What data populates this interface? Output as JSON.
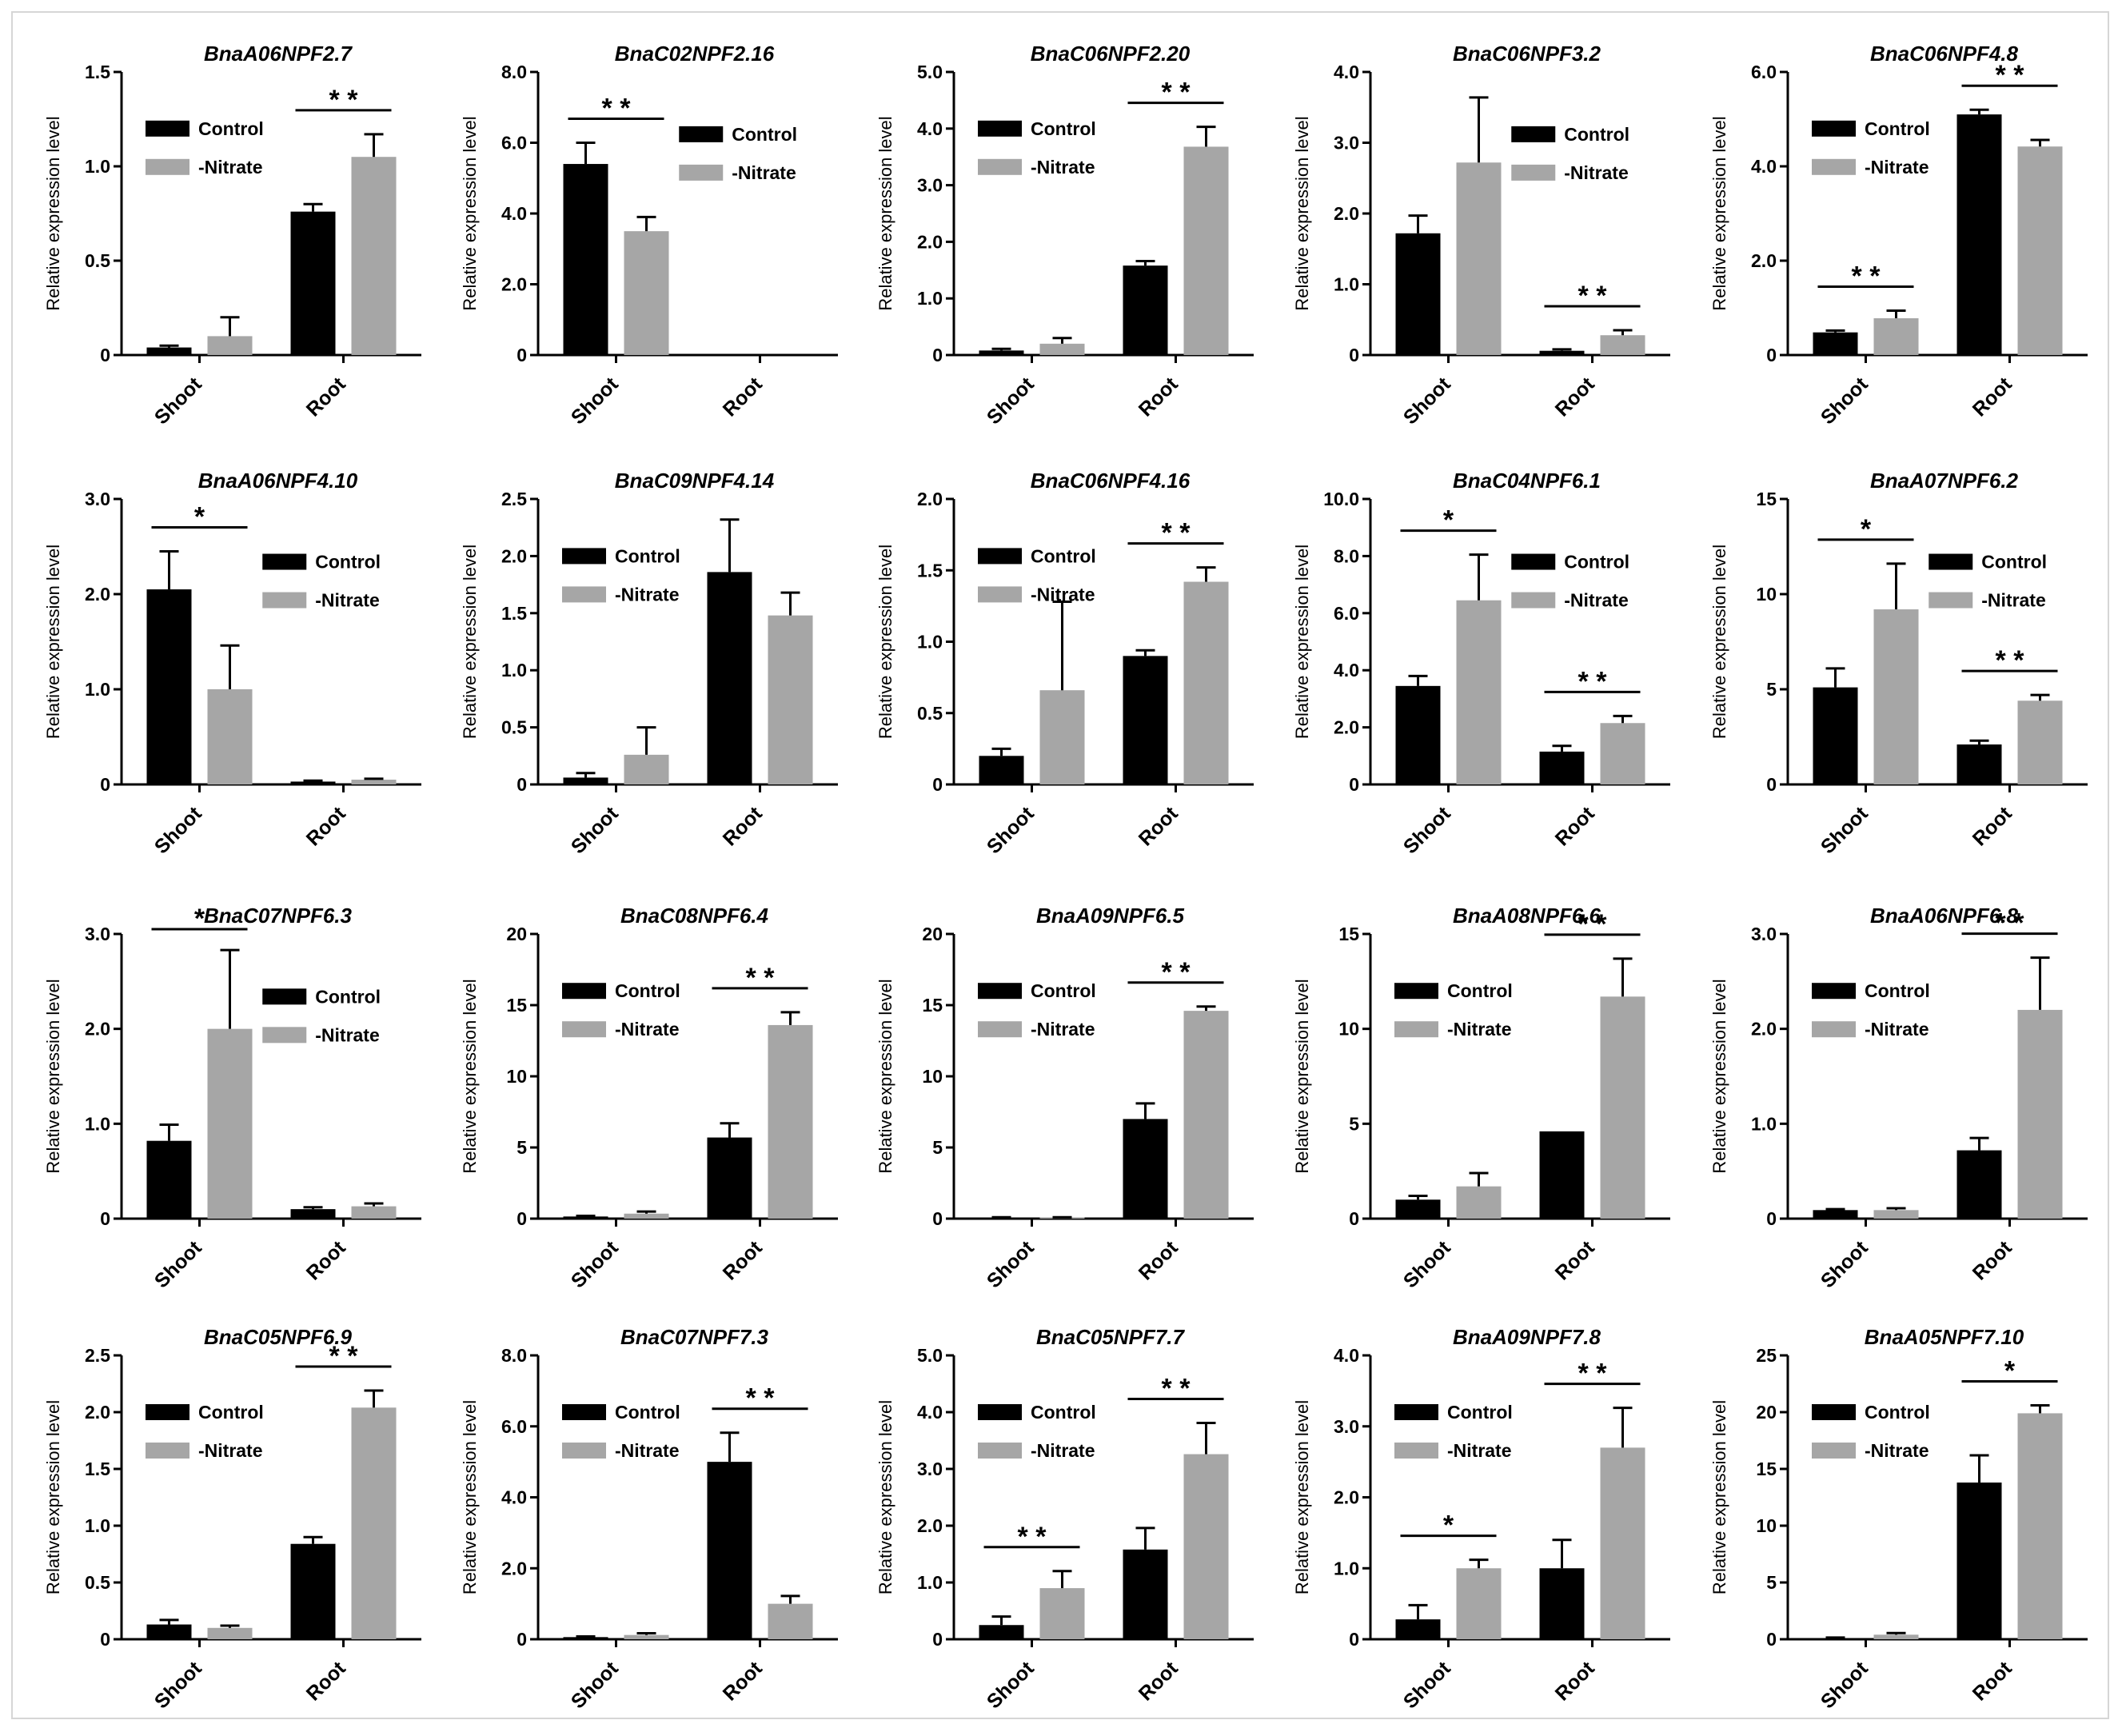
{
  "figure": {
    "colors": {
      "control": "#000000",
      "nitrate": "#a6a6a6",
      "axis": "#000000",
      "errorbar": "#000000"
    }
  },
  "chart_data": [
    {
      "type": "bar",
      "title": "BnaA06NPF2.7",
      "ylabel": "Relative expression level",
      "xlabel": "",
      "categories": [
        "Shoot",
        "Root"
      ],
      "ylim": [
        0,
        1.5
      ],
      "yticks": [
        0,
        0.5,
        1.0,
        1.5
      ],
      "tick_labels": [
        "0",
        "0.5",
        "1.0",
        "1.5"
      ],
      "legend_pos": "top-left",
      "series": [
        {
          "name": "Control",
          "values": [
            0.04,
            0.76
          ],
          "errors": [
            0.01,
            0.04
          ]
        },
        {
          "name": "-Nitrate",
          "values": [
            0.1,
            1.05
          ],
          "errors": [
            0.1,
            0.12
          ]
        }
      ],
      "annotations": [
        {
          "category": 1,
          "label": "* *"
        }
      ]
    },
    {
      "type": "bar",
      "title": "BnaC02NPF2.16",
      "ylabel": "Relative expression level",
      "xlabel": "",
      "categories": [
        "Shoot",
        "Root"
      ],
      "ylim": [
        0,
        8.0
      ],
      "yticks": [
        0,
        2,
        4,
        6,
        8
      ],
      "tick_labels": [
        "0",
        "2.0",
        "4.0",
        "6.0",
        "8.0"
      ],
      "legend_pos": "top-right",
      "series": [
        {
          "name": "Control",
          "values": [
            5.4,
            0
          ],
          "errors": [
            0.6,
            0
          ]
        },
        {
          "name": "-Nitrate",
          "values": [
            3.5,
            0
          ],
          "errors": [
            0.4,
            0
          ]
        }
      ],
      "annotations": [
        {
          "category": 0,
          "label": "* *"
        }
      ]
    },
    {
      "type": "bar",
      "title": "BnaC06NPF2.20",
      "ylabel": "Relative expression level",
      "xlabel": "",
      "categories": [
        "Shoot",
        "Root"
      ],
      "ylim": [
        0,
        5.0
      ],
      "yticks": [
        0,
        1,
        2,
        3,
        4,
        5
      ],
      "tick_labels": [
        "0",
        "1.0",
        "2.0",
        "3.0",
        "4.0",
        "5.0"
      ],
      "legend_pos": "top-left",
      "series": [
        {
          "name": "Control",
          "values": [
            0.08,
            1.58
          ],
          "errors": [
            0.03,
            0.08
          ]
        },
        {
          "name": "-Nitrate",
          "values": [
            0.2,
            3.68
          ],
          "errors": [
            0.1,
            0.35
          ]
        }
      ],
      "annotations": [
        {
          "category": 1,
          "label": "* *"
        }
      ]
    },
    {
      "type": "bar",
      "title": "BnaC06NPF3.2",
      "ylabel": "Relative expression level",
      "xlabel": "",
      "categories": [
        "Shoot",
        "Root"
      ],
      "ylim": [
        0,
        4.0
      ],
      "yticks": [
        0,
        1,
        2,
        3,
        4
      ],
      "tick_labels": [
        "0",
        "1.0",
        "2.0",
        "3.0",
        "4.0"
      ],
      "legend_pos": "top-right",
      "series": [
        {
          "name": "Control",
          "values": [
            1.72,
            0.06
          ],
          "errors": [
            0.25,
            0.02
          ]
        },
        {
          "name": "-Nitrate",
          "values": [
            2.72,
            0.28
          ],
          "errors": [
            0.92,
            0.07
          ]
        }
      ],
      "annotations": [
        {
          "category": 1,
          "label": "* *"
        }
      ]
    },
    {
      "type": "bar",
      "title": "BnaC06NPF4.8",
      "ylabel": "Relative expression level",
      "xlabel": "",
      "categories": [
        "Shoot",
        "Root"
      ],
      "ylim": [
        0,
        6.0
      ],
      "yticks": [
        0,
        2,
        4,
        6
      ],
      "tick_labels": [
        "0",
        "2.0",
        "4.0",
        "6.0"
      ],
      "legend_pos": "top-left",
      "series": [
        {
          "name": "Control",
          "values": [
            0.48,
            5.1
          ],
          "errors": [
            0.04,
            0.1
          ]
        },
        {
          "name": "-Nitrate",
          "values": [
            0.78,
            4.42
          ],
          "errors": [
            0.16,
            0.14
          ]
        }
      ],
      "annotations": [
        {
          "category": 0,
          "label": "* *"
        },
        {
          "category": 1,
          "label": "* *"
        }
      ]
    },
    {
      "type": "bar",
      "title": "BnaA06NPF4.10",
      "ylabel": "Relative expression level",
      "xlabel": "",
      "categories": [
        "Shoot",
        "Root"
      ],
      "ylim": [
        0,
        3.0
      ],
      "yticks": [
        0,
        1,
        2,
        3
      ],
      "tick_labels": [
        "0",
        "1.0",
        "2.0",
        "3.0"
      ],
      "legend_pos": "top-right",
      "series": [
        {
          "name": "Control",
          "values": [
            2.05,
            0.03
          ],
          "errors": [
            0.4,
            0.01
          ]
        },
        {
          "name": "-Nitrate",
          "values": [
            1.0,
            0.05
          ],
          "errors": [
            0.46,
            0.01
          ]
        }
      ],
      "annotations": [
        {
          "category": 0,
          "label": "*"
        }
      ]
    },
    {
      "type": "bar",
      "title": "BnaC09NPF4.14",
      "ylabel": "Relative expression level",
      "xlabel": "",
      "categories": [
        "Shoot",
        "Root"
      ],
      "ylim": [
        0,
        2.5
      ],
      "yticks": [
        0,
        0.5,
        1.0,
        1.5,
        2.0,
        2.5
      ],
      "tick_labels": [
        "0",
        "0.5",
        "1.0",
        "1.5",
        "2.0",
        "2.5"
      ],
      "legend_pos": "top-left",
      "series": [
        {
          "name": "Control",
          "values": [
            0.06,
            1.86
          ],
          "errors": [
            0.04,
            0.46
          ]
        },
        {
          "name": "-Nitrate",
          "values": [
            0.26,
            1.48
          ],
          "errors": [
            0.24,
            0.2
          ]
        }
      ],
      "annotations": []
    },
    {
      "type": "bar",
      "title": "BnaC06NPF4.16",
      "ylabel": "Relative expression level",
      "xlabel": "",
      "categories": [
        "Shoot",
        "Root"
      ],
      "ylim": [
        0,
        2.0
      ],
      "yticks": [
        0,
        0.5,
        1.0,
        1.5,
        2.0
      ],
      "tick_labels": [
        "0",
        "0.5",
        "1.0",
        "1.5",
        "2.0"
      ],
      "legend_pos": "top-left",
      "series": [
        {
          "name": "Control",
          "values": [
            0.2,
            0.9
          ],
          "errors": [
            0.05,
            0.04
          ]
        },
        {
          "name": "-Nitrate",
          "values": [
            0.66,
            1.42
          ],
          "errors": [
            0.62,
            0.1
          ]
        }
      ],
      "annotations": [
        {
          "category": 1,
          "label": "* *"
        }
      ]
    },
    {
      "type": "bar",
      "title": "BnaC04NPF6.1",
      "ylabel": "Relative expression level",
      "xlabel": "",
      "categories": [
        "Shoot",
        "Root"
      ],
      "ylim": [
        0,
        10.0
      ],
      "yticks": [
        0,
        2,
        4,
        6,
        8,
        10
      ],
      "tick_labels": [
        "0",
        "2.0",
        "4.0",
        "6.0",
        "8.0",
        "10.0"
      ],
      "legend_pos": "top-right",
      "series": [
        {
          "name": "Control",
          "values": [
            3.45,
            1.15
          ],
          "errors": [
            0.35,
            0.2
          ]
        },
        {
          "name": "-Nitrate",
          "values": [
            6.45,
            2.15
          ],
          "errors": [
            1.6,
            0.25
          ]
        }
      ],
      "annotations": [
        {
          "category": 0,
          "label": "*"
        },
        {
          "category": 1,
          "label": "* *"
        }
      ]
    },
    {
      "type": "bar",
      "title": "BnaA07NPF6.2",
      "ylabel": "Relative expression level",
      "xlabel": "",
      "categories": [
        "Shoot",
        "Root"
      ],
      "ylim": [
        0,
        15
      ],
      "yticks": [
        0,
        5,
        10,
        15
      ],
      "tick_labels": [
        "0",
        "5",
        "10",
        "15"
      ],
      "legend_pos": "top-right",
      "series": [
        {
          "name": "Control",
          "values": [
            5.1,
            2.1
          ],
          "errors": [
            1.0,
            0.2
          ]
        },
        {
          "name": "-Nitrate",
          "values": [
            9.2,
            4.4
          ],
          "errors": [
            2.4,
            0.3
          ]
        }
      ],
      "annotations": [
        {
          "category": 0,
          "label": "*"
        },
        {
          "category": 1,
          "label": "* *"
        }
      ]
    },
    {
      "type": "bar",
      "title": "BnaC07NPF6.3",
      "ylabel": "Relative expression level",
      "xlabel": "",
      "categories": [
        "Shoot",
        "Root"
      ],
      "ylim": [
        0,
        3.0
      ],
      "yticks": [
        0,
        1,
        2,
        3
      ],
      "tick_labels": [
        "0",
        "1.0",
        "2.0",
        "3.0"
      ],
      "legend_pos": "top-right",
      "series": [
        {
          "name": "Control",
          "values": [
            0.82,
            0.1
          ],
          "errors": [
            0.17,
            0.02
          ]
        },
        {
          "name": "-Nitrate",
          "values": [
            2.0,
            0.13
          ],
          "errors": [
            0.83,
            0.03
          ]
        }
      ],
      "annotations": [
        {
          "category": 0,
          "label": "*"
        }
      ]
    },
    {
      "type": "bar",
      "title": "BnaC08NPF6.4",
      "ylabel": "Relative expression level",
      "xlabel": "",
      "categories": [
        "Shoot",
        "Root"
      ],
      "ylim": [
        0,
        20
      ],
      "yticks": [
        0,
        5,
        10,
        15,
        20
      ],
      "tick_labels": [
        "0",
        "5",
        "10",
        "15",
        "20"
      ],
      "legend_pos": "top-left",
      "series": [
        {
          "name": "Control",
          "values": [
            0.15,
            5.7
          ],
          "errors": [
            0.05,
            1.0
          ]
        },
        {
          "name": "-Nitrate",
          "values": [
            0.35,
            13.6
          ],
          "errors": [
            0.15,
            0.9
          ]
        }
      ],
      "annotations": [
        {
          "category": 1,
          "label": "* *"
        }
      ]
    },
    {
      "type": "bar",
      "title": "BnaA09NPF6.5",
      "ylabel": "Relative expression level",
      "xlabel": "",
      "categories": [
        "Shoot",
        "Root"
      ],
      "ylim": [
        0,
        20
      ],
      "yticks": [
        0,
        5,
        10,
        15,
        20
      ],
      "tick_labels": [
        "0",
        "5",
        "10",
        "15",
        "20"
      ],
      "legend_pos": "top-left",
      "series": [
        {
          "name": "Control",
          "values": [
            0.08,
            7.0
          ],
          "errors": [
            0.02,
            1.1
          ]
        },
        {
          "name": "-Nitrate",
          "values": [
            0.08,
            14.6
          ],
          "errors": [
            0.02,
            0.3
          ]
        }
      ],
      "annotations": [
        {
          "category": 1,
          "label": "* *"
        }
      ]
    },
    {
      "type": "bar",
      "title": "BnaA08NPF6.6",
      "ylabel": "Relative expression level",
      "xlabel": "",
      "categories": [
        "Shoot",
        "Root"
      ],
      "ylim": [
        0,
        15
      ],
      "yticks": [
        0,
        5,
        10,
        15
      ],
      "tick_labels": [
        "0",
        "5",
        "10",
        "15"
      ],
      "legend_pos": "top-left",
      "series": [
        {
          "name": "Control",
          "values": [
            1.0,
            4.6
          ],
          "errors": [
            0.2,
            0
          ]
        },
        {
          "name": "-Nitrate",
          "values": [
            1.7,
            11.7
          ],
          "errors": [
            0.7,
            2.0
          ]
        }
      ],
      "annotations": [
        {
          "category": 1,
          "label": "* *"
        }
      ]
    },
    {
      "type": "bar",
      "title": "BnaA06NPF6.8",
      "ylabel": "Relative expression level",
      "xlabel": "",
      "categories": [
        "Shoot",
        "Root"
      ],
      "ylim": [
        0,
        3.0
      ],
      "yticks": [
        0,
        1,
        2,
        3
      ],
      "tick_labels": [
        "0",
        "1.0",
        "2.0",
        "3.0"
      ],
      "legend_pos": "top-left",
      "series": [
        {
          "name": "Control",
          "values": [
            0.09,
            0.72
          ],
          "errors": [
            0.01,
            0.13
          ]
        },
        {
          "name": "-Nitrate",
          "values": [
            0.09,
            2.2
          ],
          "errors": [
            0.02,
            0.55
          ]
        }
      ],
      "annotations": [
        {
          "category": 1,
          "label": "* *"
        }
      ]
    },
    {
      "type": "bar",
      "title": "BnaC05NPF6.9",
      "ylabel": "Relative expression level",
      "xlabel": "",
      "categories": [
        "Shoot",
        "Root"
      ],
      "ylim": [
        0,
        2.5
      ],
      "yticks": [
        0,
        0.5,
        1.0,
        1.5,
        2.0,
        2.5
      ],
      "tick_labels": [
        "0",
        "0.5",
        "1.0",
        "1.5",
        "2.0",
        "2.5"
      ],
      "legend_pos": "top-left",
      "series": [
        {
          "name": "Control",
          "values": [
            0.13,
            0.84
          ],
          "errors": [
            0.04,
            0.06
          ]
        },
        {
          "name": "-Nitrate",
          "values": [
            0.1,
            2.04
          ],
          "errors": [
            0.02,
            0.15
          ]
        }
      ],
      "annotations": [
        {
          "category": 1,
          "label": "* *"
        }
      ]
    },
    {
      "type": "bar",
      "title": "BnaC07NPF7.3",
      "ylabel": "Relative expression level",
      "xlabel": "",
      "categories": [
        "Shoot",
        "Root"
      ],
      "ylim": [
        0,
        8.0
      ],
      "yticks": [
        0,
        2,
        4,
        6,
        8
      ],
      "tick_labels": [
        "0",
        "2.0",
        "4.0",
        "6.0",
        "8.0"
      ],
      "legend_pos": "top-left",
      "series": [
        {
          "name": "Control",
          "values": [
            0.06,
            5.0
          ],
          "errors": [
            0.02,
            0.82
          ]
        },
        {
          "name": "-Nitrate",
          "values": [
            0.12,
            1.0
          ],
          "errors": [
            0.05,
            0.22
          ]
        }
      ],
      "annotations": [
        {
          "category": 1,
          "label": "* *"
        }
      ]
    },
    {
      "type": "bar",
      "title": "BnaC05NPF7.7",
      "ylabel": "Relative expression level",
      "xlabel": "",
      "categories": [
        "Shoot",
        "Root"
      ],
      "ylim": [
        0,
        5.0
      ],
      "yticks": [
        0,
        1,
        2,
        3,
        4,
        5
      ],
      "tick_labels": [
        "0",
        "1.0",
        "2.0",
        "3.0",
        "4.0",
        "5.0"
      ],
      "legend_pos": "top-left",
      "series": [
        {
          "name": "Control",
          "values": [
            0.25,
            1.58
          ],
          "errors": [
            0.15,
            0.38
          ]
        },
        {
          "name": "-Nitrate",
          "values": [
            0.9,
            3.26
          ],
          "errors": [
            0.3,
            0.55
          ]
        }
      ],
      "annotations": [
        {
          "category": 0,
          "label": "* *"
        },
        {
          "category": 1,
          "label": "* *"
        }
      ]
    },
    {
      "type": "bar",
      "title": "BnaA09NPF7.8",
      "ylabel": "Relative expression level",
      "xlabel": "",
      "categories": [
        "Shoot",
        "Root"
      ],
      "ylim": [
        0,
        4.0
      ],
      "yticks": [
        0,
        1,
        2,
        3,
        4
      ],
      "tick_labels": [
        "0",
        "1.0",
        "2.0",
        "3.0",
        "4.0"
      ],
      "legend_pos": "top-left",
      "series": [
        {
          "name": "Control",
          "values": [
            0.28,
            1.0
          ],
          "errors": [
            0.2,
            0.4
          ]
        },
        {
          "name": "-Nitrate",
          "values": [
            1.0,
            2.7
          ],
          "errors": [
            0.12,
            0.56
          ]
        }
      ],
      "annotations": [
        {
          "category": 0,
          "label": "*"
        },
        {
          "category": 1,
          "label": "* *"
        }
      ]
    },
    {
      "type": "bar",
      "title": "BnaA05NPF7.10",
      "ylabel": "Relative expression level",
      "xlabel": "",
      "categories": [
        "Shoot",
        "Root"
      ],
      "ylim": [
        0,
        25
      ],
      "yticks": [
        0,
        5,
        10,
        15,
        20,
        25
      ],
      "tick_labels": [
        "0",
        "5",
        "10",
        "15",
        "20",
        "25"
      ],
      "legend_pos": "top-left",
      "series": [
        {
          "name": "Control",
          "values": [
            0.1,
            13.8
          ],
          "errors": [
            0.05,
            2.4
          ]
        },
        {
          "name": "-Nitrate",
          "values": [
            0.4,
            19.9
          ],
          "errors": [
            0.15,
            0.7
          ]
        }
      ],
      "annotations": [
        {
          "category": 1,
          "label": "*"
        }
      ]
    }
  ]
}
